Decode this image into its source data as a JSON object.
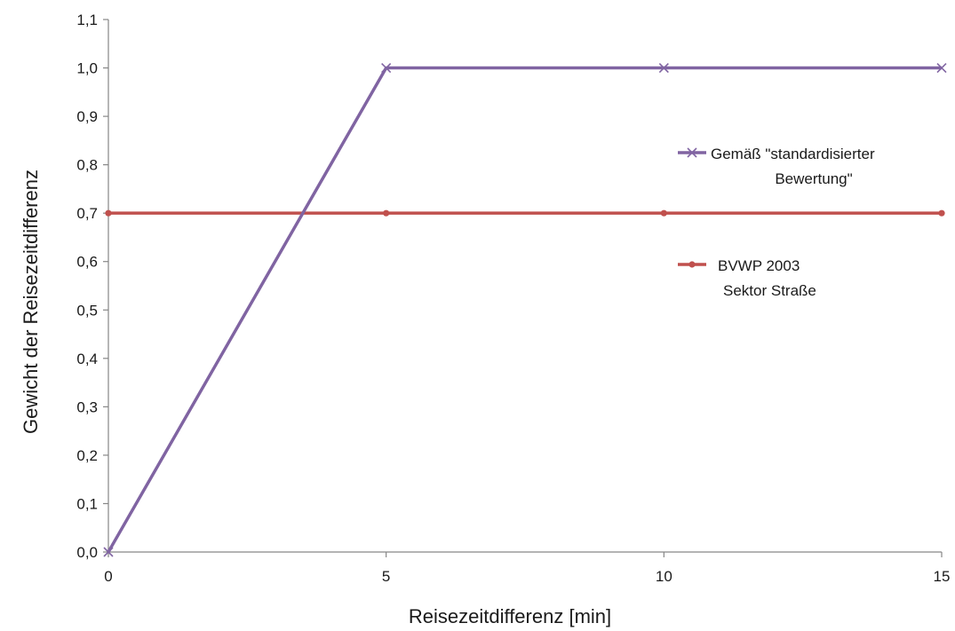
{
  "chart_data": {
    "type": "line",
    "title": "",
    "xlabel": "Reisezeitdifferenz [min]",
    "ylabel": "Gewicht der Reisezeitdifferenz",
    "xlim": [
      0,
      15
    ],
    "ylim": [
      0.0,
      1.1
    ],
    "x_ticks": [
      0,
      5,
      10,
      15
    ],
    "x_tick_labels": [
      "0",
      "5",
      "10",
      "15"
    ],
    "y_ticks": [
      0.0,
      0.1,
      0.2,
      0.3,
      0.4,
      0.5,
      0.6,
      0.7,
      0.8,
      0.9,
      1.0,
      1.1
    ],
    "y_tick_labels": [
      "0,0",
      "0,1",
      "0,2",
      "0,3",
      "0,4",
      "0,5",
      "0,6",
      "0,7",
      "0,8",
      "0,9",
      "1,0",
      "1,1"
    ],
    "grid": false,
    "legend_position": "right",
    "series": [
      {
        "name": "Gemäß \"standardisierter Bewertung\"",
        "legend_lines": [
          "Gemäß \"standardisierter",
          "Bewertung\""
        ],
        "color": "#8064a2",
        "marker": "x",
        "x": [
          0,
          5,
          10,
          15
        ],
        "y": [
          0.0,
          1.0,
          1.0,
          1.0
        ]
      },
      {
        "name": "BVWP 2003 Sektor Straße",
        "legend_lines": [
          "BVWP 2003",
          "Sektor Straße"
        ],
        "color": "#c0504d",
        "marker": "circle",
        "x": [
          0,
          5,
          10,
          15
        ],
        "y": [
          0.7,
          0.7,
          0.7,
          0.7
        ]
      }
    ]
  }
}
